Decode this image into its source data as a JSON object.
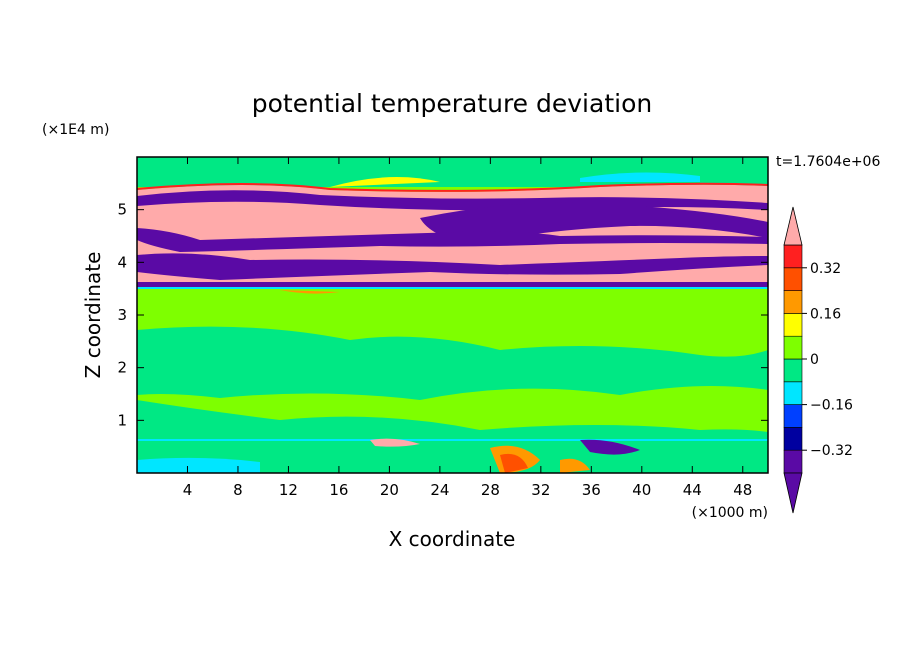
{
  "chart_data": {
    "type": "heatmap",
    "title": "potential temperature deviation",
    "xlabel": "X coordinate",
    "ylabel": "Z coordinate",
    "x_unit_label": "(×1000 m)",
    "y_unit_label": "(×1E4 m)",
    "time_label": "t=1.7604e+06",
    "xlim": [
      0,
      50
    ],
    "ylim": [
      0,
      6
    ],
    "x_ticks": [
      4,
      8,
      12,
      16,
      20,
      24,
      28,
      32,
      36,
      40,
      44,
      48
    ],
    "x_tick_labels": [
      "4",
      "8",
      "12",
      "16",
      "20",
      "24",
      "28",
      "32",
      "36",
      "40",
      "44",
      "48"
    ],
    "y_ticks": [
      1,
      2,
      3,
      4,
      5
    ],
    "y_tick_labels": [
      "1",
      "2",
      "3",
      "4",
      "5"
    ],
    "colorbar": {
      "levels": [
        -0.4,
        -0.32,
        -0.24,
        -0.16,
        -0.08,
        0,
        0.08,
        0.16,
        0.24,
        0.32,
        0.4
      ],
      "colors": [
        "#5a0aa5",
        "#0000a0",
        "#0040ff",
        "#00e6ff",
        "#00e884",
        "#7eff00",
        "#ffff00",
        "#ff9900",
        "#ff5000",
        "#ff2020"
      ],
      "under_color": "#5a0aa5",
      "over_color": "#ffaaaa",
      "tick_values": [
        0.32,
        0.16,
        0,
        -0.16,
        -0.32
      ],
      "tick_labels": [
        "0.32",
        "0.16",
        "0",
        "−0.16",
        "−0.32"
      ]
    },
    "field_layers": [
      {
        "z_range": [
          0,
          0.6
        ],
        "level": "-0.08..0.08",
        "color": "#00e884",
        "note_values": "mixed"
      },
      {
        "z_range": [
          0.6,
          3.5
        ],
        "level": "0..0.08",
        "color": "#7eff00"
      },
      {
        "z_range": [
          3.5,
          5.7
        ],
        "level": "banded",
        "color": "#ffaaaa"
      },
      {
        "z_range": [
          5.7,
          6.0
        ],
        "level": "0..0.08",
        "color": "#7eff00"
      }
    ]
  }
}
